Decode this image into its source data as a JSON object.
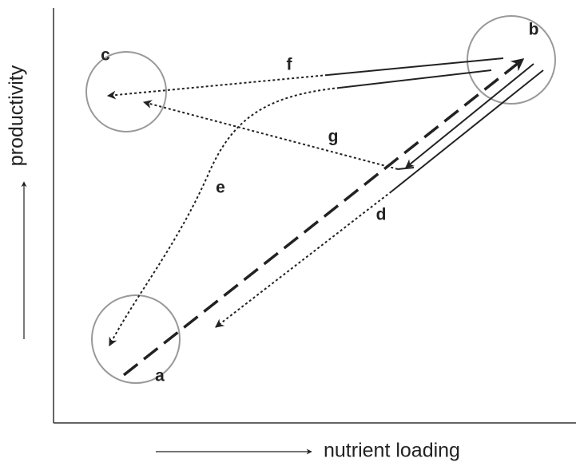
{
  "axes": {
    "x_label": "nutrient loading",
    "y_label": "productivity"
  },
  "nodes": [
    {
      "label": "a"
    },
    {
      "label": "b"
    },
    {
      "label": "c"
    }
  ],
  "paths": [
    {
      "label": "d"
    },
    {
      "label": "e"
    },
    {
      "label": "f"
    },
    {
      "label": "g"
    }
  ]
}
